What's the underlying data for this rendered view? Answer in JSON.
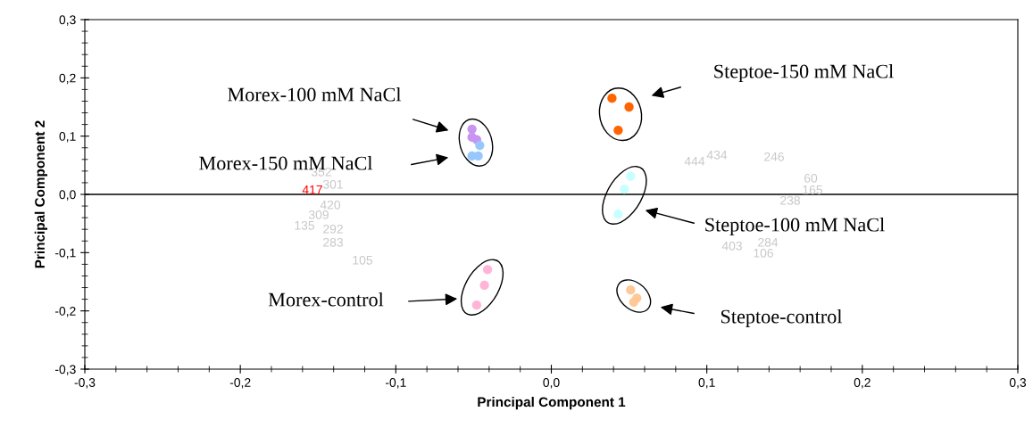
{
  "chart_data": {
    "type": "scatter",
    "xlabel": "Principal Component 1",
    "ylabel": "Principal Component 2",
    "xlim": [
      -0.3,
      0.3
    ],
    "ylim": [
      -0.3,
      0.3
    ],
    "xticks": [
      {
        "value": -0.3,
        "label": "-0,3"
      },
      {
        "value": -0.2,
        "label": "-0,2"
      },
      {
        "value": -0.1,
        "label": "-0,1"
      },
      {
        "value": 0,
        "label": "0,0"
      },
      {
        "value": 0.1,
        "label": "0,1"
      },
      {
        "value": 0.2,
        "label": "0,2"
      },
      {
        "value": 0.3,
        "label": "0,3"
      }
    ],
    "yticks": [
      {
        "value": -0.3,
        "label": "-0,3"
      },
      {
        "value": -0.2,
        "label": "-0,2"
      },
      {
        "value": -0.1,
        "label": "-0,1"
      },
      {
        "value": 0,
        "label": "0,0"
      },
      {
        "value": 0.1,
        "label": "0,1"
      },
      {
        "value": 0.2,
        "label": "0,2"
      },
      {
        "value": 0.3,
        "label": "0,3"
      }
    ],
    "grid": false,
    "legend": false,
    "marker": "circle",
    "ref_lines": [
      {
        "axis": "y",
        "value": 0,
        "color": "#000000"
      }
    ],
    "series": [
      {
        "color": "#c896f0",
        "x": [
          -0.051,
          -0.051,
          -0.048
        ],
        "values": [
          0.112,
          0.098,
          0.094
        ]
      },
      {
        "color": "#96c8ff",
        "x": [
          -0.046,
          -0.051,
          -0.047
        ],
        "values": [
          0.084,
          0.066,
          0.066
        ]
      },
      {
        "color": "#ff6400",
        "x": [
          0.039,
          0.05,
          0.043
        ],
        "values": [
          0.165,
          0.15,
          0.11
        ]
      },
      {
        "color": "#c8ffff",
        "x": [
          0.051,
          0.047,
          0.043
        ],
        "values": [
          0.031,
          0.009,
          -0.034
        ]
      },
      {
        "color": "#ffb4d8",
        "x": [
          -0.041,
          -0.043,
          -0.048
        ],
        "values": [
          -0.129,
          -0.156,
          -0.19
        ]
      },
      {
        "color": "#ffc896",
        "x": [
          0.051,
          0.055,
          0.053
        ],
        "values": [
          -0.164,
          -0.178,
          -0.185
        ]
      }
    ],
    "annotations": [
      "Morex-100 mM NaCl",
      "Morex-150 mM NaCl",
      "Steptoe-150 mM NaCl",
      "Steptoe-100 mM NaCl",
      "Morex-control",
      "Steptoe-control",
      "352",
      "301",
      "417",
      "420",
      "309",
      "135",
      "292",
      "283",
      "105",
      "444",
      "434",
      "246",
      "60",
      "165",
      "238",
      "284",
      "403",
      "106"
    ]
  }
}
